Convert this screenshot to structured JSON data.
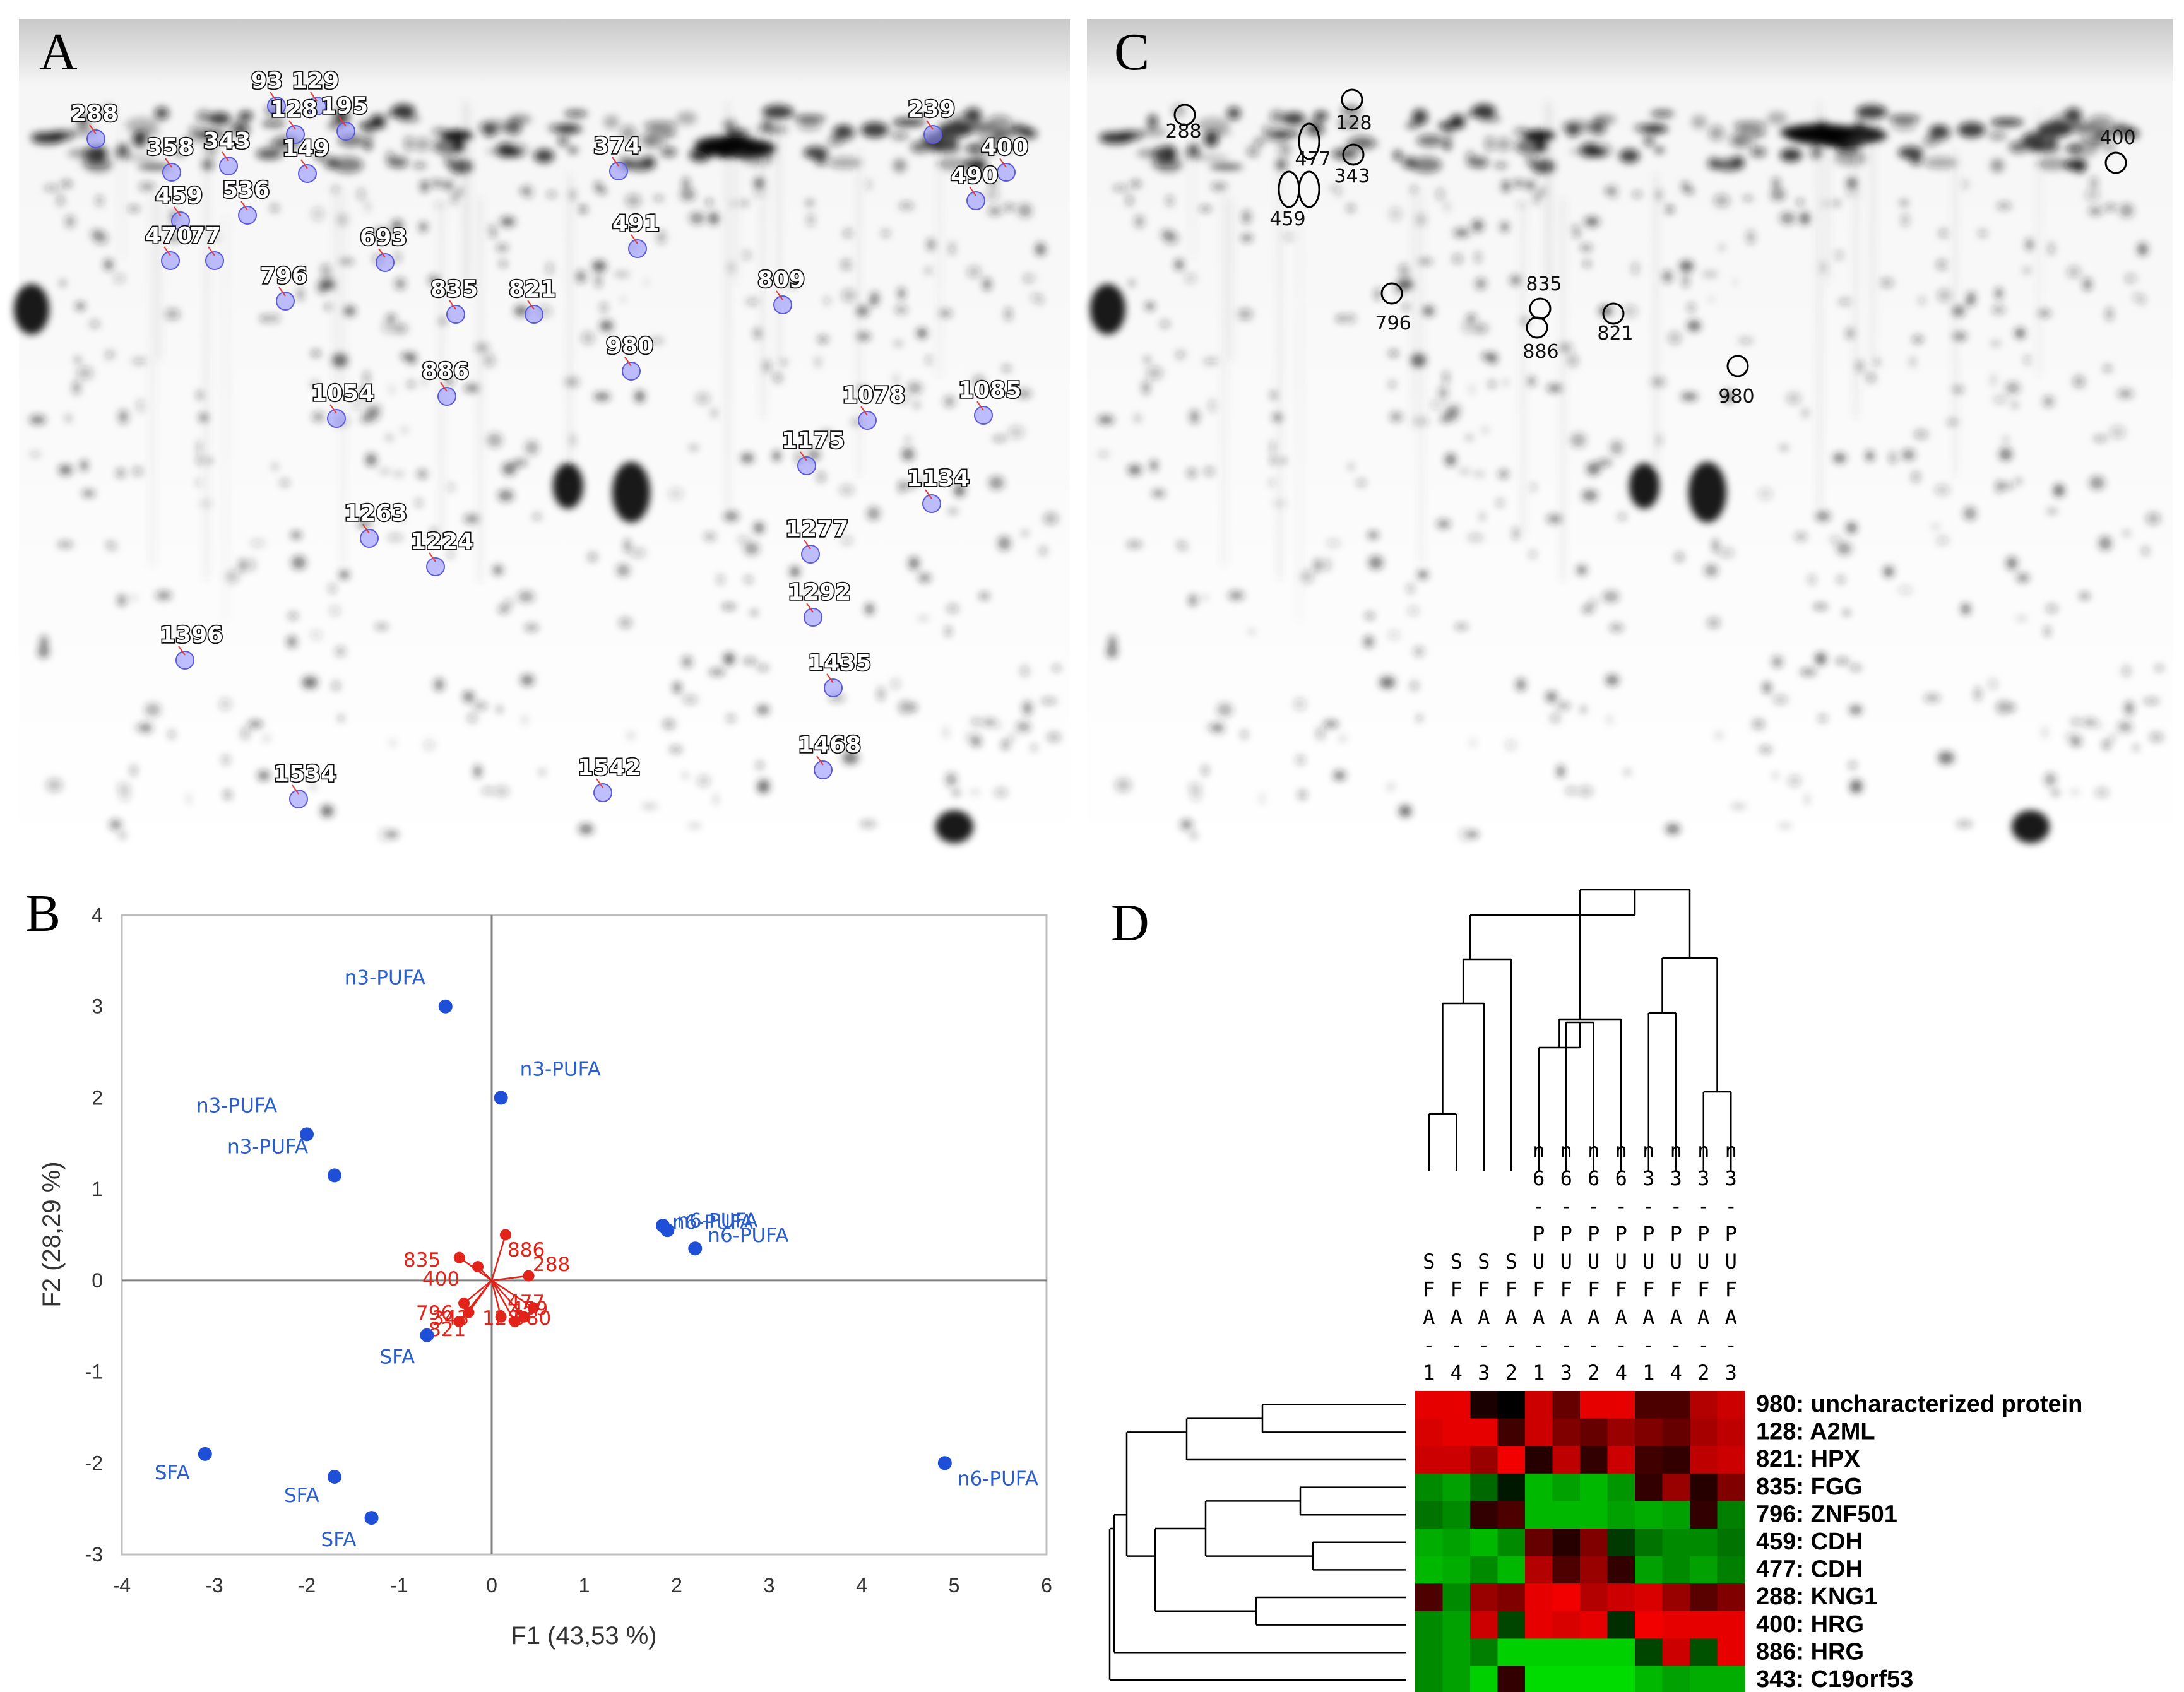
{
  "panels": {
    "a": "A",
    "b": "B",
    "c": "C",
    "d": "D"
  },
  "panel_a": {
    "spots": [
      "93",
      "129",
      "128",
      "195",
      "288",
      "358",
      "149",
      "343",
      "459",
      "536",
      "470",
      "77",
      "693",
      "374",
      "491",
      "239",
      "400",
      "490",
      "796",
      "835",
      "821",
      "886",
      "809",
      "980",
      "1054",
      "1078",
      "1085",
      "1175",
      "1134",
      "1263",
      "1224",
      "1277",
      "1292",
      "1396",
      "1435",
      "1468",
      "1534",
      "1542"
    ]
  },
  "panel_c": {
    "spots": [
      "288",
      "128",
      "477",
      "343",
      "459",
      "400",
      "835",
      "796",
      "886",
      "821",
      "980"
    ]
  },
  "colors": {
    "observation": "#1f4fd6",
    "variable": "#e2231a",
    "heat_high": "#ff0000",
    "heat_low": "#00dd00"
  },
  "chart_data": [
    {
      "type": "scatter",
      "xlabel": "F1 (43,53 %)",
      "ylabel": "F2 (28,29 %)",
      "xlim": [
        -4,
        6
      ],
      "ylim": [
        -3,
        4
      ],
      "xticks": [
        "-4",
        "-3",
        "-2",
        "-1",
        "0",
        "1",
        "2",
        "3",
        "4",
        "5",
        "6"
      ],
      "yticks": [
        "-3",
        "-2",
        "-1",
        "0",
        "1",
        "2",
        "3",
        "4"
      ],
      "grid": false,
      "observations": [
        {
          "label": "n3-PUFA",
          "x": -0.5,
          "y": 3.0
        },
        {
          "label": "n3-PUFA",
          "x": 0.1,
          "y": 2.0
        },
        {
          "label": "n3-PUFA",
          "x": -2.0,
          "y": 1.6
        },
        {
          "label": "n3-PUFA",
          "x": -1.7,
          "y": 1.15
        },
        {
          "label": "n6-PUFA",
          "x": 1.85,
          "y": 0.6
        },
        {
          "label": "n6-PUFA",
          "x": 1.9,
          "y": 0.55
        },
        {
          "label": "n6-PUFA",
          "x": 2.2,
          "y": 0.35
        },
        {
          "label": "n6-PUFA",
          "x": 4.9,
          "y": -2.0
        },
        {
          "label": "SFA",
          "x": -0.7,
          "y": -0.6
        },
        {
          "label": "SFA",
          "x": -3.1,
          "y": -1.9
        },
        {
          "label": "SFA",
          "x": -1.7,
          "y": -2.15
        },
        {
          "label": "SFA",
          "x": -1.3,
          "y": -2.6
        }
      ],
      "variables": [
        {
          "label": "886",
          "x": 0.15,
          "y": 0.5
        },
        {
          "label": "288",
          "x": 0.4,
          "y": 0.05
        },
        {
          "label": "835",
          "x": -0.35,
          "y": 0.25
        },
        {
          "label": "400",
          "x": -0.15,
          "y": 0.15
        },
        {
          "label": "477",
          "x": 0.45,
          "y": -0.3
        },
        {
          "label": "459",
          "x": 0.35,
          "y": -0.4
        },
        {
          "label": "128",
          "x": 0.25,
          "y": -0.45
        },
        {
          "label": "980",
          "x": 0.1,
          "y": -0.4
        },
        {
          "label": "796",
          "x": -0.25,
          "y": -0.35
        },
        {
          "label": "821",
          "x": -0.35,
          "y": -0.45
        },
        {
          "label": "343",
          "x": -0.3,
          "y": -0.25
        }
      ]
    },
    {
      "type": "heatmap",
      "columns": [
        {
          "group": "SFA",
          "rep": "1"
        },
        {
          "group": "SFA",
          "rep": "4"
        },
        {
          "group": "SFA",
          "rep": "3"
        },
        {
          "group": "SFA",
          "rep": "2"
        },
        {
          "group": "n6-PUFA",
          "rep": "1"
        },
        {
          "group": "n6-PUFA",
          "rep": "3"
        },
        {
          "group": "n6-PUFA",
          "rep": "2"
        },
        {
          "group": "n6-PUFA",
          "rep": "4"
        },
        {
          "group": "n3-PUFA",
          "rep": "1"
        },
        {
          "group": "n3-PUFA",
          "rep": "4"
        },
        {
          "group": "n3-PUFA",
          "rep": "2"
        },
        {
          "group": "n3-PUFA",
          "rep": "3"
        }
      ],
      "rows": [
        "980: uncharacterized protein",
        "128: A2ML",
        "821: HPX",
        "835: FGG",
        "796: ZNF501",
        "459: CDH",
        "477: CDH",
        "288: KNG1",
        "400: HRG",
        "886: HRG",
        "343: C19orf53"
      ],
      "values": [
        [
          0.9,
          0.9,
          0.1,
          0.0,
          0.8,
          0.4,
          0.9,
          0.9,
          0.3,
          0.3,
          0.7,
          0.8
        ],
        [
          0.85,
          0.9,
          0.9,
          0.25,
          0.8,
          0.5,
          0.4,
          0.6,
          0.5,
          0.4,
          0.65,
          0.75
        ],
        [
          0.8,
          0.8,
          0.6,
          0.95,
          0.15,
          0.75,
          0.2,
          0.8,
          0.25,
          0.2,
          0.75,
          0.8
        ],
        [
          -0.6,
          -0.7,
          -0.45,
          -0.1,
          -0.8,
          -0.7,
          -0.8,
          -0.65,
          0.2,
          0.6,
          0.15,
          0.5
        ],
        [
          -0.5,
          -0.6,
          0.2,
          0.3,
          -0.8,
          -0.8,
          -0.8,
          -0.7,
          -0.75,
          -0.7,
          0.2,
          -0.55
        ],
        [
          -0.75,
          -0.7,
          -0.8,
          -0.6,
          0.4,
          0.15,
          0.5,
          -0.25,
          -0.5,
          -0.6,
          -0.6,
          -0.5
        ],
        [
          -0.8,
          -0.75,
          -0.6,
          -0.8,
          0.7,
          0.3,
          0.6,
          0.2,
          -0.7,
          -0.6,
          -0.7,
          -0.55
        ],
        [
          0.3,
          -0.6,
          0.6,
          0.5,
          0.9,
          0.95,
          0.7,
          0.8,
          0.85,
          0.6,
          0.35,
          0.5
        ],
        [
          -0.6,
          -0.7,
          0.8,
          -0.3,
          0.9,
          0.85,
          0.9,
          -0.2,
          0.95,
          0.9,
          0.9,
          0.9
        ],
        [
          -0.6,
          -0.7,
          -0.55,
          -0.9,
          -0.9,
          -0.9,
          -0.9,
          -0.9,
          -0.3,
          0.8,
          -0.35,
          0.9
        ],
        [
          -0.6,
          -0.7,
          -0.9,
          0.2,
          -0.95,
          -0.95,
          -0.95,
          -0.95,
          -0.8,
          -0.7,
          -0.75,
          -0.75
        ]
      ]
    }
  ]
}
